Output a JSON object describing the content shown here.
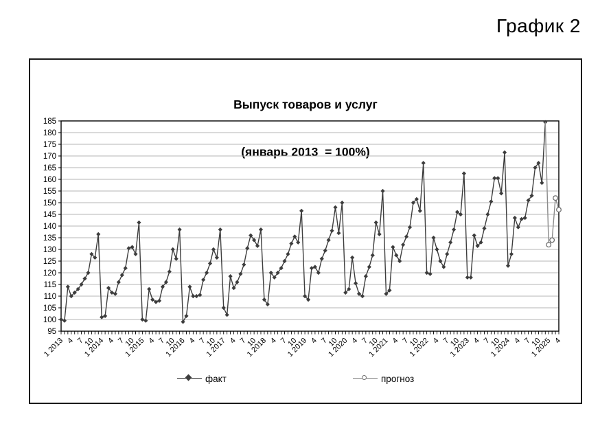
{
  "caption": "График 2",
  "chart": {
    "title_line1": "Выпуск товаров и услуг",
    "title_line2": "(январь 2013  = 100%)",
    "legend": {
      "fact_label": "факт",
      "forecast_label": "прогноз"
    },
    "colors": {
      "fact_line": "#3d3d3d",
      "forecast_line": "#8c8c8c",
      "gridline": "#b5b5b5",
      "axis": "#000000"
    }
  },
  "chart_data": {
    "type": "line",
    "title": "Выпуск товаров и услуг (январь 2013 = 100%)",
    "ylabel": "",
    "xlabel": "",
    "ylim": [
      95,
      185
    ],
    "ytick_step": 5,
    "grid": "horizontal",
    "legend_position": "bottom",
    "x_months_start": "2013-01",
    "x_months_end": "2025-04",
    "x_tick_every_months": 3,
    "x_tick_labels": [
      "1 2013",
      "4",
      "7",
      "10",
      "1 2014",
      "4",
      "7",
      "10",
      "1 2015",
      "4",
      "7",
      "10",
      "1 2016",
      "4",
      "7",
      "10",
      "1 2017",
      "4",
      "7",
      "10",
      "1 2018",
      "4",
      "7",
      "10",
      "1 2019",
      "4",
      "7",
      "10",
      "1 2020",
      "4",
      "7",
      "10",
      "1 2021",
      "4",
      "7",
      "10",
      "1 2022",
      "4",
      "7",
      "10",
      "1 2023",
      "4",
      "7",
      "10",
      "1 2024",
      "4",
      "7",
      "10",
      "1 2025",
      "4"
    ],
    "series": [
      {
        "name": "факт",
        "marker": "diamond-filled",
        "color": "#3d3d3d",
        "start_month": "2013-01",
        "values": [
          100,
          99.5,
          114,
          110,
          111.5,
          113,
          115,
          117.5,
          120,
          128,
          126.5,
          136.5,
          101,
          101.5,
          113.5,
          111.5,
          111,
          116,
          119,
          122,
          130.5,
          131,
          128,
          141.5,
          100,
          99.5,
          113,
          108.5,
          107.5,
          108,
          114,
          116,
          120.5,
          130,
          126,
          138.5,
          99,
          101.5,
          114,
          110,
          110,
          110.5,
          117,
          120,
          124,
          130,
          126.5,
          138.5,
          105,
          102,
          118.5,
          113.5,
          116,
          119.5,
          123.5,
          130.5,
          136,
          134,
          131.5,
          138.5,
          108.5,
          106.5,
          120,
          118,
          120,
          122,
          125,
          128,
          132.5,
          135.5,
          133,
          146.5,
          110,
          108.5,
          122,
          122.5,
          120,
          126,
          129.5,
          134,
          138,
          148,
          137,
          150,
          111.5,
          113,
          126.5,
          115.5,
          111,
          110,
          118.5,
          122.5,
          127.5,
          141.5,
          136.5,
          155,
          111,
          112.5,
          131,
          127.5,
          125,
          132,
          135.5,
          139.5,
          150,
          151.5,
          146.5,
          167,
          120,
          119.5,
          135,
          130,
          125,
          122.5,
          128,
          133,
          138.5,
          146,
          145,
          162.5,
          118,
          118,
          136,
          131.5,
          133,
          139,
          145,
          150.5,
          160.5,
          160.5,
          154,
          171.5,
          123,
          128,
          143.5,
          139.5,
          143,
          143.5,
          151,
          153,
          165,
          167,
          158.5,
          184.5
        ]
      },
      {
        "name": "прогноз",
        "marker": "circle-open",
        "color": "#8c8c8c",
        "start_month": "2025-01",
        "connects_from_previous": true,
        "values": [
          132,
          134,
          152,
          147
        ]
      }
    ]
  }
}
